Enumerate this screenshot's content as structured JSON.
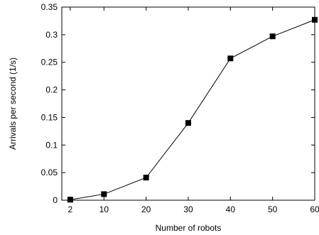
{
  "chart_data": {
    "type": "line",
    "title": "",
    "xlabel": "Number of robots",
    "ylabel": "Arrivals per second (1/s)",
    "x_ticks": [
      "2",
      "10",
      "20",
      "30",
      "40",
      "50",
      "60"
    ],
    "y_ticks": [
      "0",
      "0.05",
      "0.1",
      "0.15",
      "0.2",
      "0.25",
      "0.3",
      "0.35"
    ],
    "xlim": [
      0,
      60
    ],
    "ylim": [
      0,
      0.35
    ],
    "grid": false,
    "legend": "none",
    "series": [
      {
        "x": [
          2,
          10,
          20,
          30,
          40,
          50,
          60
        ],
        "y": [
          0.001,
          0.011,
          0.041,
          0.14,
          0.257,
          0.297,
          0.327
        ],
        "marker": "square",
        "color": "#000000"
      }
    ]
  }
}
